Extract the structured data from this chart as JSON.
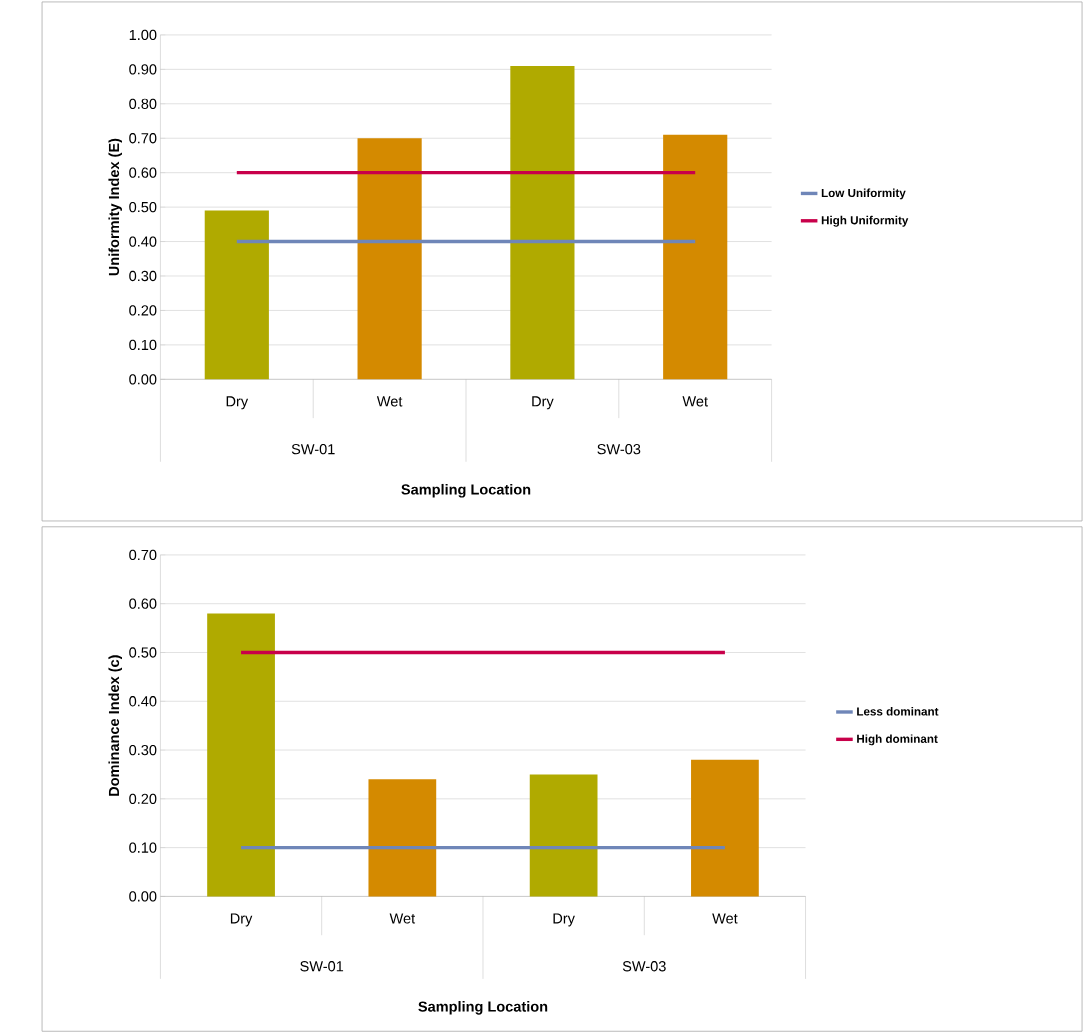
{
  "chart_data": [
    {
      "type": "bar",
      "xlabel": "Sampling Location",
      "ylabel": "Uniformity Index (E)",
      "categories": [
        "Dry",
        "Wet",
        "Dry",
        "Wet"
      ],
      "series": [
        {
          "values": [
            0.49,
            0.7,
            0.91,
            0.71
          ],
          "colors": [
            "#b0aa00",
            "#d48a00",
            "#b0aa00",
            "#d48a00"
          ]
        },
        {
          "type": "line",
          "name": "Low Uniformity",
          "color": "#6f86b8",
          "values": [
            0.4,
            0.4,
            0.4,
            0.4
          ]
        },
        {
          "type": "line",
          "name": "High Uniformity",
          "color": "#c8004a",
          "values": [
            0.6,
            0.6,
            0.6,
            0.6
          ]
        }
      ],
      "annotations": [
        "SW-01",
        "SW-03"
      ],
      "ylim": [
        0,
        1.0
      ],
      "yticks": [
        {
          "value": 0,
          "label": "0.00"
        },
        {
          "value": 0.1,
          "label": "0.10"
        },
        {
          "value": 0.2,
          "label": "0.20"
        },
        {
          "value": 0.3,
          "label": "0.30"
        },
        {
          "value": 0.4,
          "label": "0.40"
        },
        {
          "value": 0.5,
          "label": "0.50"
        },
        {
          "value": 0.6,
          "label": "0.60"
        },
        {
          "value": 0.7,
          "label": "0.70"
        },
        {
          "value": 0.8,
          "label": "0.80"
        },
        {
          "value": 0.9,
          "label": "0.90"
        },
        {
          "value": 1.0,
          "label": "1.00"
        }
      ],
      "grid": "y",
      "legend": "right"
    },
    {
      "type": "bar",
      "xlabel": "Sampling Location",
      "ylabel": "Dominance Index (c)",
      "categories": [
        "Dry",
        "Wet",
        "Dry",
        "Wet"
      ],
      "series": [
        {
          "values": [
            0.58,
            0.24,
            0.25,
            0.28
          ],
          "colors": [
            "#b0aa00",
            "#d48a00",
            "#b0aa00",
            "#d48a00"
          ]
        },
        {
          "type": "line",
          "name": "Less dominant",
          "color": "#6f86b8",
          "values": [
            0.1,
            0.1,
            0.1,
            0.1
          ]
        },
        {
          "type": "line",
          "name": "High dominant",
          "color": "#c8004a",
          "values": [
            0.5,
            0.5,
            0.5,
            0.5
          ]
        }
      ],
      "annotations": [
        "SW-01",
        "SW-03"
      ],
      "ylim": [
        0,
        0.7
      ],
      "yticks": [
        {
          "value": 0,
          "label": "0.00"
        },
        {
          "value": 0.1,
          "label": "0.10"
        },
        {
          "value": 0.2,
          "label": "0.20"
        },
        {
          "value": 0.3,
          "label": "0.30"
        },
        {
          "value": 0.4,
          "label": "0.40"
        },
        {
          "value": 0.5,
          "label": "0.50"
        },
        {
          "value": 0.6,
          "label": "0.60"
        },
        {
          "value": 0.7,
          "label": "0.70"
        }
      ],
      "grid": "y",
      "legend": "right"
    }
  ]
}
